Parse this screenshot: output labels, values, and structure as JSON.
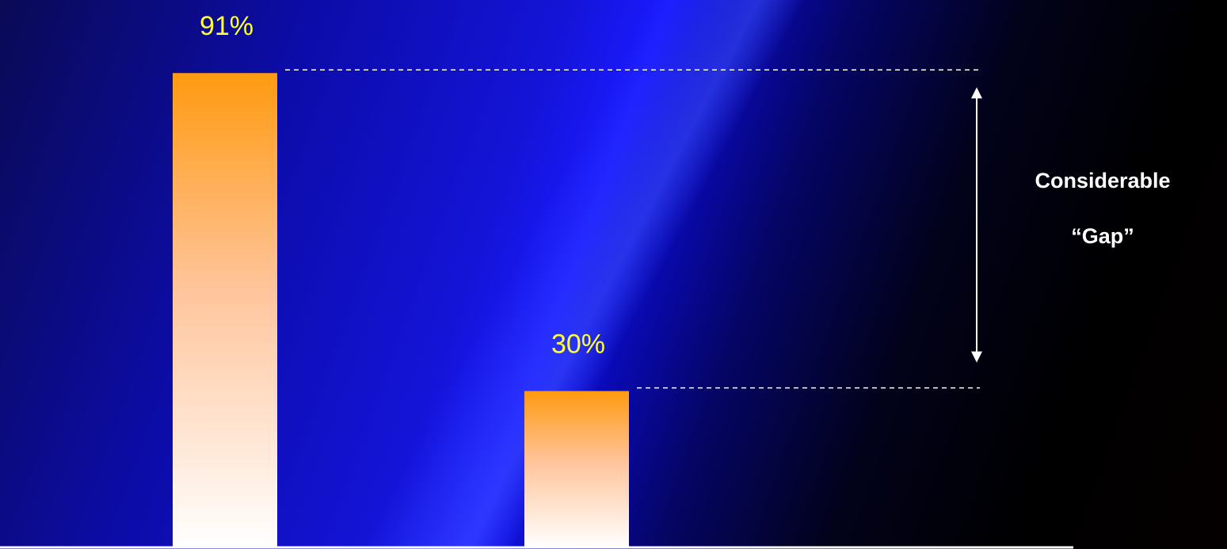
{
  "chart_data": {
    "type": "bar",
    "categories": [
      "",
      ""
    ],
    "values": [
      91,
      30
    ],
    "value_labels": [
      "91%",
      "30%"
    ],
    "title": "",
    "xlabel": "",
    "ylabel": "",
    "ylim": [
      0,
      100
    ],
    "grid": false,
    "bar_colors": {
      "top": "#ff9a10",
      "bottom": "#ffffff"
    },
    "annotation": {
      "line1": "Considerable",
      "line2": "“Gap”",
      "from_value": 91,
      "to_value": 30
    }
  },
  "colors": {
    "label": "#ffff33",
    "annotation": "#ffffff",
    "baseline": "#ffffff"
  }
}
